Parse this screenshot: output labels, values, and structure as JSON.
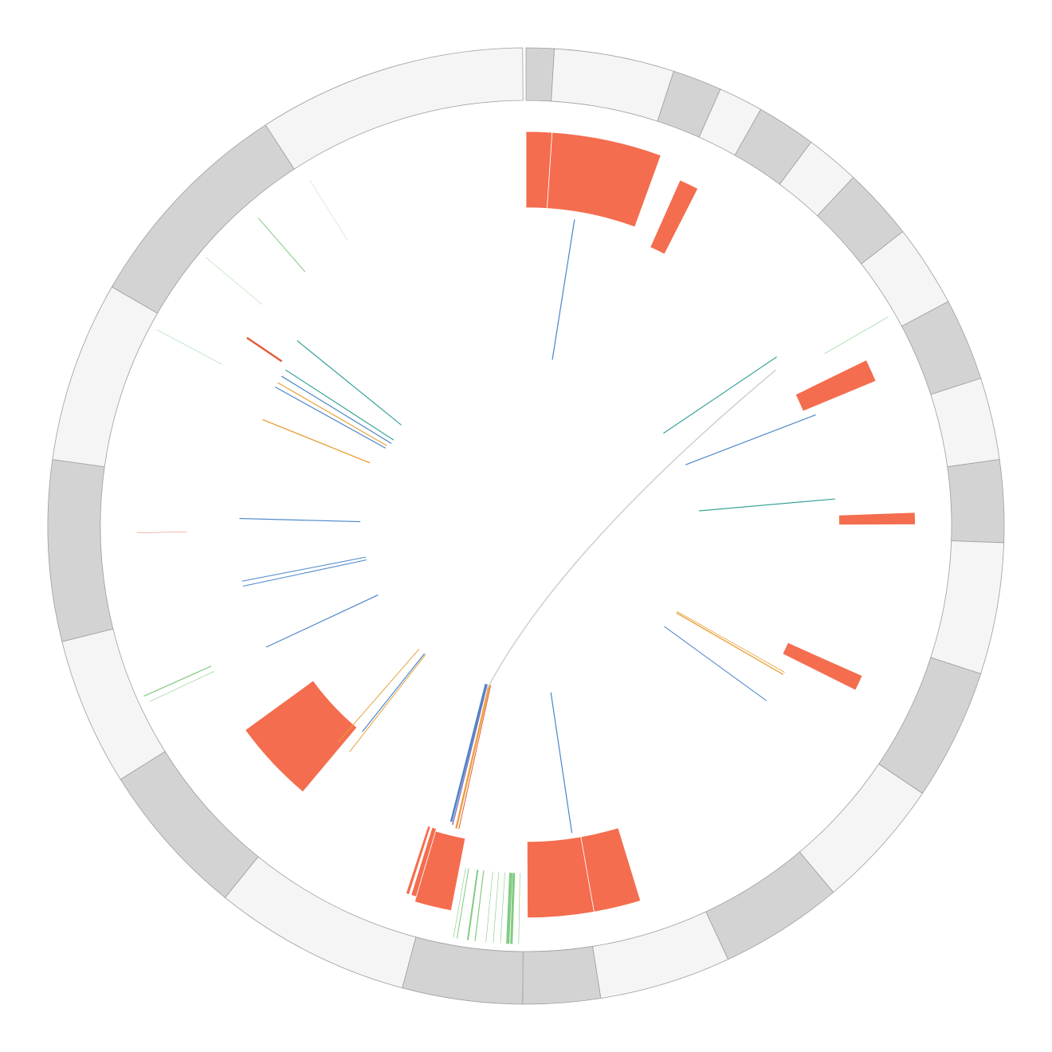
{
  "colors": {
    "band_light": "#f5f5f5",
    "band_dark": "#d3d3d3",
    "band_stroke": "#9e9e9e",
    "highlight": "#f46d4e",
    "link_blue": "#4a86c8",
    "link_teal": "#3aa39a",
    "link_orange": "#e8a23a",
    "link_green": "#6cc26c",
    "link_red": "#e35a3a",
    "link_purple": "#8e6bbf",
    "link_grey": "#cfcfcf"
  },
  "ideogram_bands": [
    {
      "start": 0.0,
      "end": 3.4,
      "tone": "dark"
    },
    {
      "start": 3.4,
      "end": 18.0,
      "tone": "light"
    },
    {
      "start": 18.0,
      "end": 24.0,
      "tone": "dark"
    },
    {
      "start": 24.0,
      "end": 29.4,
      "tone": "light"
    },
    {
      "start": 29.4,
      "end": 36.6,
      "tone": "dark"
    },
    {
      "start": 36.6,
      "end": 43.2,
      "tone": "light"
    },
    {
      "start": 43.2,
      "end": 52.0,
      "tone": "dark"
    },
    {
      "start": 52.0,
      "end": 62.0,
      "tone": "light"
    },
    {
      "start": 62.0,
      "end": 72.0,
      "tone": "dark"
    },
    {
      "start": 72.0,
      "end": 82.0,
      "tone": "light"
    },
    {
      "start": 82.0,
      "end": 92.0,
      "tone": "dark"
    },
    {
      "start": 92.0,
      "end": 108.0,
      "tone": "light"
    },
    {
      "start": 108.0,
      "end": 124.0,
      "tone": "dark"
    },
    {
      "start": 124.0,
      "end": 140.0,
      "tone": "light"
    },
    {
      "start": 140.0,
      "end": 155.0,
      "tone": "dark"
    },
    {
      "start": 155.0,
      "end": 171.0,
      "tone": "light"
    },
    {
      "start": 171.0,
      "end": 180.4,
      "tone": "dark"
    },
    {
      "start": 180.4,
      "end": 195.0,
      "tone": "dark"
    },
    {
      "start": 195.0,
      "end": 219.0,
      "tone": "light"
    },
    {
      "start": 219.0,
      "end": 238.0,
      "tone": "dark"
    },
    {
      "start": 238.0,
      "end": 256.0,
      "tone": "light"
    },
    {
      "start": 256.0,
      "end": 278.0,
      "tone": "dark"
    },
    {
      "start": 278.0,
      "end": 300.0,
      "tone": "light"
    },
    {
      "start": 300.0,
      "end": 327.0,
      "tone": "dark"
    },
    {
      "start": 327.0,
      "end": 359.6,
      "tone": "light"
    }
  ],
  "highlight_blocks": [
    {
      "start": 0.0,
      "end": 3.8,
      "inner": 0.605,
      "outer": 0.75
    },
    {
      "start": 3.8,
      "end": 20.0,
      "inner": 0.605,
      "outer": 0.75
    },
    {
      "start": 24.0,
      "end": 27.0,
      "inner": 0.58,
      "outer": 0.72
    },
    {
      "start": 64.0,
      "end": 67.5,
      "inner": 0.57,
      "outer": 0.72
    },
    {
      "start": 88.0,
      "end": 89.8,
      "inner": 0.595,
      "outer": 0.74
    },
    {
      "start": 114.0,
      "end": 116.5,
      "inner": 0.545,
      "outer": 0.7
    },
    {
      "start": 163.0,
      "end": 170.0,
      "inner": 0.6,
      "outer": 0.745
    },
    {
      "start": 170.0,
      "end": 179.8,
      "inner": 0.6,
      "outer": 0.745
    },
    {
      "start": 191.0,
      "end": 196.5,
      "inner": 0.605,
      "outer": 0.745
    },
    {
      "start": 196.5,
      "end": 197.3,
      "inner": 0.6,
      "outer": 0.735
    },
    {
      "start": 197.6,
      "end": 198.1,
      "inner": 0.6,
      "outer": 0.735
    },
    {
      "start": 220.0,
      "end": 234.0,
      "inner": 0.5,
      "outer": 0.66
    }
  ],
  "radial_links": [
    {
      "angle": 9.0,
      "inner": 0.32,
      "outer": 0.59,
      "color": "link_blue",
      "weight": 1.2
    },
    {
      "angle": 56.0,
      "inner": 0.315,
      "outer": 0.575,
      "color": "link_teal",
      "weight": 1.2
    },
    {
      "angle": 69.0,
      "inner": 0.325,
      "outer": 0.59,
      "color": "link_blue",
      "weight": 1.2
    },
    {
      "angle": 85.0,
      "inner": 0.33,
      "outer": 0.59,
      "color": "link_teal",
      "weight": 1.2
    },
    {
      "angle": 120.0,
      "inner": 0.33,
      "outer": 0.565,
      "color": "link_orange",
      "weight": 1.4
    },
    {
      "angle": 119.5,
      "inner": 0.33,
      "outer": 0.565,
      "color": "link_orange",
      "weight": 0.8
    },
    {
      "angle": 126.0,
      "inner": 0.325,
      "outer": 0.565,
      "color": "link_blue",
      "weight": 1.0
    },
    {
      "angle": 171.5,
      "inner": 0.32,
      "outer": 0.59,
      "color": "link_blue",
      "weight": 1.2
    },
    {
      "angle": 192.5,
      "inner": 0.31,
      "outer": 0.59,
      "color": "link_red",
      "weight": 1.0
    },
    {
      "angle": 193.0,
      "inner": 0.31,
      "outer": 0.59,
      "color": "link_orange",
      "weight": 2.4
    },
    {
      "angle": 193.8,
      "inner": 0.31,
      "outer": 0.585,
      "color": "link_purple",
      "weight": 1.4
    },
    {
      "angle": 194.2,
      "inner": 0.31,
      "outer": 0.58,
      "color": "link_blue",
      "weight": 2.6
    },
    {
      "angle": 218.0,
      "inner": 0.31,
      "outer": 0.545,
      "color": "link_orange",
      "weight": 1.0
    },
    {
      "angle": 221.0,
      "inner": 0.31,
      "outer": 0.545,
      "color": "link_orange",
      "weight": 1.0
    },
    {
      "angle": 218.5,
      "inner": 0.31,
      "outer": 0.5,
      "color": "link_blue",
      "weight": 1.2
    },
    {
      "angle": 245.0,
      "inner": 0.31,
      "outer": 0.545,
      "color": "link_blue",
      "weight": 1.2
    },
    {
      "angle": 258.0,
      "inner": 0.31,
      "outer": 0.55,
      "color": "link_blue",
      "weight": 1.0
    },
    {
      "angle": 259.0,
      "inner": 0.31,
      "outer": 0.55,
      "color": "link_blue",
      "weight": 1.0
    },
    {
      "angle": 271.5,
      "inner": 0.315,
      "outer": 0.545,
      "color": "link_blue",
      "weight": 1.2
    },
    {
      "angle": 292.0,
      "inner": 0.32,
      "outer": 0.54,
      "color": "link_orange",
      "weight": 1.4
    },
    {
      "angle": 299.0,
      "inner": 0.305,
      "outer": 0.545,
      "color": "link_blue",
      "weight": 1.2
    },
    {
      "angle": 300.0,
      "inner": 0.305,
      "outer": 0.545,
      "color": "link_orange",
      "weight": 1.2
    },
    {
      "angle": 301.5,
      "inner": 0.3,
      "outer": 0.545,
      "color": "link_blue",
      "weight": 1.2
    },
    {
      "angle": 303.0,
      "inner": 0.3,
      "outer": 0.545,
      "color": "link_teal",
      "weight": 1.2
    },
    {
      "angle": 309.0,
      "inner": 0.305,
      "outer": 0.56,
      "color": "link_teal",
      "weight": 1.2
    },
    {
      "angle": 304.0,
      "inner": 0.56,
      "outer": 0.64,
      "color": "link_red",
      "weight": 2.4
    }
  ],
  "outer_ticks": [
    {
      "angle": 60.0,
      "inner": 0.655,
      "outer": 0.795,
      "color": "link_green",
      "weight": 0.6
    },
    {
      "angle": 246.0,
      "inner": 0.655,
      "outer": 0.795,
      "color": "link_green",
      "weight": 1.2
    },
    {
      "angle": 245.0,
      "inner": 0.655,
      "outer": 0.79,
      "color": "link_green",
      "weight": 0.6
    },
    {
      "angle": 298.0,
      "inner": 0.655,
      "outer": 0.795,
      "color": "link_green",
      "weight": 0.5
    },
    {
      "angle": 310.0,
      "inner": 0.655,
      "outer": 0.795,
      "color": "link_green",
      "weight": 0.5
    },
    {
      "angle": 319.0,
      "inner": 0.64,
      "outer": 0.775,
      "color": "link_green",
      "weight": 1.0
    },
    {
      "angle": 328.0,
      "inner": 0.64,
      "outer": 0.775,
      "color": "link_grey",
      "weight": 0.6
    },
    {
      "angle": 269.0,
      "inner": 0.645,
      "outer": 0.74,
      "color": "link_red",
      "weight": 0.5
    },
    {
      "angle": 181.0,
      "inner": 0.66,
      "outer": 0.795,
      "color": "link_green",
      "weight": 0.6
    },
    {
      "angle": 182.0,
      "inner": 0.66,
      "outer": 0.795,
      "color": "link_green",
      "weight": 3.0
    },
    {
      "angle": 182.5,
      "inner": 0.66,
      "outer": 0.795,
      "color": "link_green",
      "weight": 4.0
    },
    {
      "angle": 183.5,
      "inner": 0.66,
      "outer": 0.795,
      "color": "link_green",
      "weight": 0.6
    },
    {
      "angle": 184.5,
      "inner": 0.66,
      "outer": 0.795,
      "color": "link_green",
      "weight": 0.6
    },
    {
      "angle": 185.5,
      "inner": 0.66,
      "outer": 0.795,
      "color": "link_green",
      "weight": 0.6
    },
    {
      "angle": 187.0,
      "inner": 0.66,
      "outer": 0.795,
      "color": "link_green",
      "weight": 1.2
    },
    {
      "angle": 188.0,
      "inner": 0.66,
      "outer": 0.795,
      "color": "link_green",
      "weight": 2.0
    },
    {
      "angle": 189.5,
      "inner": 0.66,
      "outer": 0.795,
      "color": "link_green",
      "weight": 1.0
    },
    {
      "angle": 190.0,
      "inner": 0.66,
      "outer": 0.795,
      "color": "link_green",
      "weight": 0.6
    }
  ],
  "chord": {
    "from_angle": 58.0,
    "to_angle": 193.5,
    "color": "link_grey",
    "weight": 1.5
  }
}
